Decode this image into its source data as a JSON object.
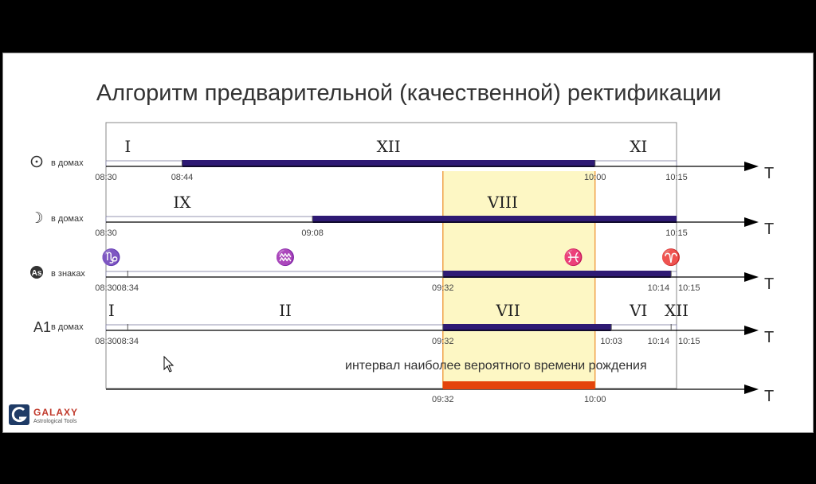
{
  "title": "Алгоритм предварительной (качественной) ректификации",
  "interval_label": "интервал наиболее вероятного времени рождения",
  "axis_symbol": "T",
  "logo": {
    "name": "GALAXY",
    "subtitle": "Astrological Tools"
  },
  "colors": {
    "bar": "#2e1a74",
    "highlight_fill": "#fdf7c4",
    "highlight_edge": "#f0a14a",
    "interval_bar": "#e4440b",
    "frame": "#888888",
    "text": "#333333"
  },
  "chart_data": {
    "type": "timeline",
    "time_range": [
      "08:30",
      "10:15"
    ],
    "highlight_interval": [
      "09:32",
      "10:00"
    ],
    "rows": [
      {
        "symbol": "☉",
        "label": "в домах",
        "marks": [
          "08:30",
          "08:44",
          "10:00",
          "10:15"
        ],
        "bars": [
          [
            "08:44",
            "10:00"
          ]
        ],
        "segments": [
          {
            "label": "I",
            "at": "08:34"
          },
          {
            "label": "XII",
            "at": "09:22"
          },
          {
            "label": "XI",
            "at": "10:08"
          }
        ]
      },
      {
        "symbol": "☽",
        "label": "в домах",
        "marks": [
          "08:30",
          "09:08",
          "10:15"
        ],
        "bars": [
          [
            "09:08",
            "10:15"
          ]
        ],
        "segments": [
          {
            "label": "IX",
            "at": "08:44"
          },
          {
            "label": "VIII",
            "at": "09:43"
          }
        ]
      },
      {
        "symbol": "As",
        "label": "в знаках",
        "marks": [
          "08:30",
          "08:34",
          "09:32",
          "10:14",
          "10:15"
        ],
        "bars": [
          [
            "09:32",
            "10:14"
          ]
        ],
        "segments": [
          {
            "label": "♑",
            "at": "08:31"
          },
          {
            "label": "♒",
            "at": "09:03"
          },
          {
            "label": "♓",
            "at": "09:56"
          },
          {
            "label": "♈",
            "at": "10:14"
          }
        ]
      },
      {
        "symbol": "A1",
        "label": "в домах",
        "marks": [
          "08:30",
          "08:34",
          "09:32",
          "10:03",
          "10:14",
          "10:15"
        ],
        "bars": [
          [
            "09:32",
            "10:03"
          ]
        ],
        "segments": [
          {
            "label": "I",
            "at": "08:31"
          },
          {
            "label": "II",
            "at": "09:03"
          },
          {
            "label": "VII",
            "at": "09:44"
          },
          {
            "label": "VI",
            "at": "10:08"
          },
          {
            "label": "XII",
            "at": "10:15"
          }
        ]
      }
    ],
    "summary": {
      "marks": [
        "09:32",
        "10:00"
      ],
      "bar": [
        "09:32",
        "10:00"
      ]
    }
  }
}
